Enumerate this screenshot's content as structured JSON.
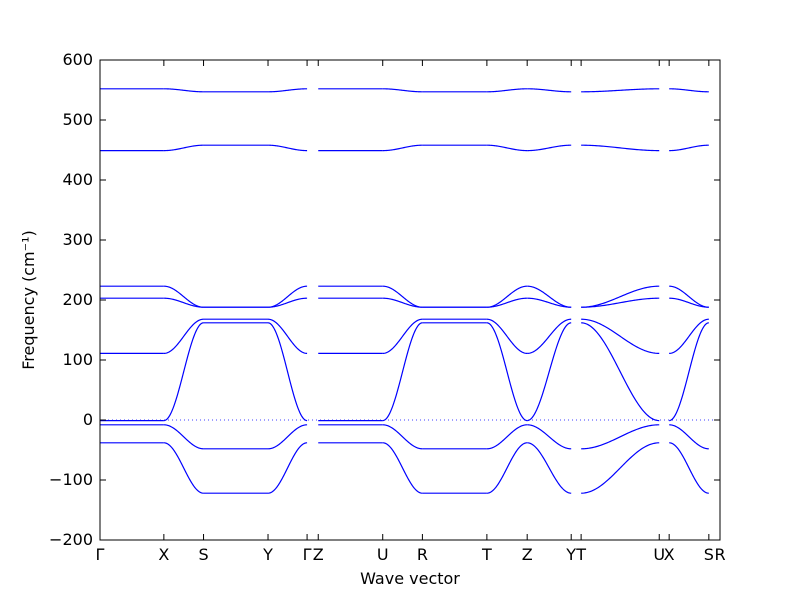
{
  "chart_data": {
    "type": "line",
    "title": "",
    "xlabel": "Wave vector",
    "ylabel": "Frequency (cm⁻¹)",
    "ylim": [
      -200,
      600
    ],
    "yticks": [
      -200,
      -100,
      0,
      100,
      200,
      300,
      400,
      500,
      600
    ],
    "xlim": [
      0,
      1
    ],
    "kpoints": [
      {
        "label": "Γ",
        "x": 0.0
      },
      {
        "label": "X",
        "x": 0.103
      },
      {
        "label": "S",
        "x": 0.167
      },
      {
        "label": "Y",
        "x": 0.271
      },
      {
        "label": "Γ",
        "x": 0.334
      },
      {
        "label": "Z",
        "x": 0.352
      },
      {
        "label": "U",
        "x": 0.456
      },
      {
        "label": "R",
        "x": 0.52
      },
      {
        "label": "T",
        "x": 0.624
      },
      {
        "label": "Z",
        "x": 0.689
      },
      {
        "label": "Y",
        "x": 0.76
      },
      {
        "label": "T",
        "x": 0.776
      },
      {
        "label": "U",
        "x": 0.902
      },
      {
        "label": "X",
        "x": 0.918
      },
      {
        "label": "S",
        "x": 0.982
      },
      {
        "label": "R",
        "x": 1.0
      }
    ],
    "zero_line": 0,
    "line_color": "#0000ff",
    "segments": [
      {
        "from": "Γ",
        "to": "X",
        "x": [
          0.0,
          0.103
        ],
        "start": [
          552,
          449,
          223,
          203,
          111,
          -1,
          -8,
          -38
        ],
        "end": [
          552,
          449,
          223,
          203,
          111,
          -1,
          -8,
          -38
        ]
      },
      {
        "from": "X",
        "to": "S",
        "x": [
          0.103,
          0.167
        ],
        "start": [
          552,
          449,
          223,
          203,
          111,
          -1,
          -8,
          -38
        ],
        "end": [
          547,
          458,
          188,
          188,
          168,
          162,
          -48,
          -122
        ]
      },
      {
        "from": "S",
        "to": "Y",
        "x": [
          0.167,
          0.271
        ],
        "start": [
          547,
          458,
          188,
          188,
          168,
          162,
          -48,
          -122
        ],
        "end": [
          547,
          458,
          188,
          188,
          168,
          162,
          -48,
          -122
        ]
      },
      {
        "from": "Y",
        "to": "Γ",
        "x": [
          0.271,
          0.334
        ],
        "start": [
          547,
          458,
          188,
          188,
          168,
          162,
          -48,
          -122
        ],
        "end": [
          552,
          449,
          223,
          203,
          111,
          -1,
          -8,
          -38
        ]
      },
      {
        "from": "Z",
        "to": "U",
        "x": [
          0.352,
          0.456
        ],
        "start": [
          552,
          449,
          223,
          203,
          111,
          -1,
          -8,
          -38
        ],
        "end": [
          552,
          449,
          223,
          203,
          111,
          -1,
          -8,
          -38
        ]
      },
      {
        "from": "U",
        "to": "R",
        "x": [
          0.456,
          0.52
        ],
        "start": [
          552,
          449,
          223,
          203,
          111,
          -1,
          -8,
          -38
        ],
        "end": [
          547,
          458,
          188,
          188,
          168,
          162,
          -48,
          -122
        ]
      },
      {
        "from": "R",
        "to": "T",
        "x": [
          0.52,
          0.624
        ],
        "start": [
          547,
          458,
          188,
          188,
          168,
          162,
          -48,
          -122
        ],
        "end": [
          547,
          458,
          188,
          188,
          168,
          162,
          -48,
          -122
        ]
      },
      {
        "from": "T",
        "to": "Z",
        "x": [
          0.624,
          0.689
        ],
        "start": [
          547,
          458,
          188,
          188,
          168,
          162,
          -48,
          -122
        ],
        "end": [
          552,
          449,
          223,
          203,
          111,
          -1,
          -8,
          -38
        ]
      },
      {
        "from": "Z",
        "to": "Y",
        "x": [
          0.689,
          0.76
        ],
        "start": [
          552,
          449,
          223,
          203,
          111,
          -1,
          -8,
          -38
        ],
        "end": [
          547,
          458,
          188,
          188,
          168,
          162,
          -48,
          -122
        ]
      },
      {
        "from": "T",
        "to": "U",
        "x": [
          0.776,
          0.902
        ],
        "start": [
          547,
          458,
          188,
          188,
          168,
          162,
          -48,
          -122
        ],
        "end": [
          552,
          449,
          223,
          203,
          111,
          -1,
          -8,
          -38
        ]
      },
      {
        "from": "X",
        "to": "S",
        "x": [
          0.918,
          0.982
        ],
        "start": [
          552,
          449,
          223,
          203,
          111,
          -1,
          -8,
          -38
        ],
        "end": [
          547,
          458,
          188,
          188,
          168,
          162,
          -48,
          -122
        ]
      }
    ],
    "grid": false
  }
}
